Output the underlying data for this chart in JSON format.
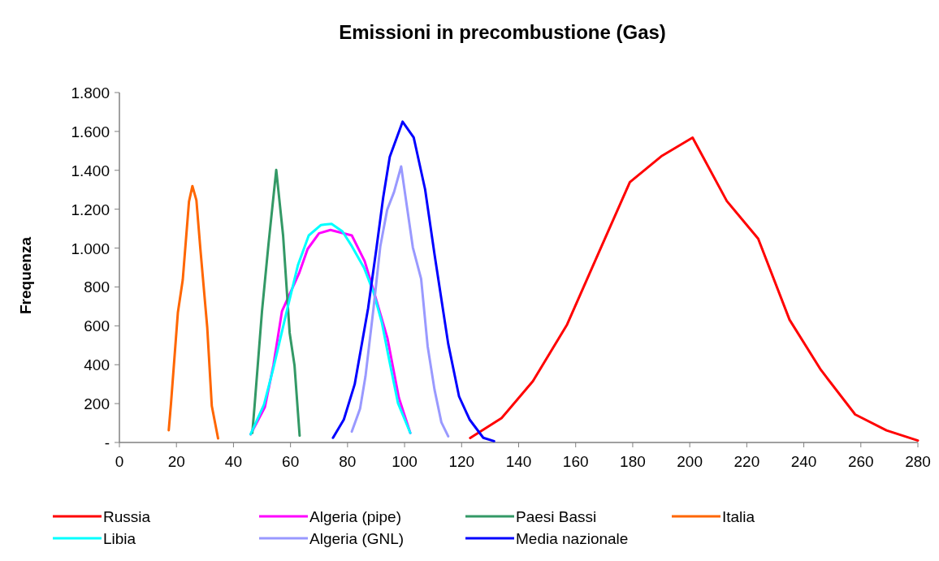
{
  "chart_data": {
    "type": "line",
    "title": "Emissioni in precombustione (Gas)",
    "ylabel": "Frequenza",
    "xlim": [
      0,
      280
    ],
    "xticks": [
      0,
      20,
      40,
      60,
      80,
      100,
      120,
      140,
      160,
      180,
      200,
      220,
      240,
      260,
      280
    ],
    "ylim": [
      0,
      1800
    ],
    "yticks": [
      {
        "value": 0,
        "label": "-"
      },
      {
        "value": 200,
        "label": "200"
      },
      {
        "value": 400,
        "label": "400"
      },
      {
        "value": 600,
        "label": "600"
      },
      {
        "value": 800,
        "label": "800"
      },
      {
        "value": 1000,
        "label": "1.000"
      },
      {
        "value": 1200,
        "label": "1.200"
      },
      {
        "value": 1400,
        "label": "1.400"
      },
      {
        "value": 1600,
        "label": "1.600"
      },
      {
        "value": 1800,
        "label": "1.800"
      }
    ],
    "grid": false,
    "legend": "bottom",
    "marker": "none",
    "line_style": "solid",
    "series": [
      {
        "name": "Russia",
        "color": "#ff0000",
        "x": [
          123,
          134,
          145,
          157,
          168,
          179,
          190,
          201,
          213,
          224,
          235,
          246,
          258,
          269,
          280
        ],
        "values": [
          23,
          125,
          315,
          607,
          974,
          1339,
          1472,
          1568,
          1242,
          1048,
          631,
          373,
          144,
          62,
          10
        ]
      },
      {
        "name": "Algeria (pipe)",
        "color": "#ff00ff",
        "x": [
          46,
          51,
          54,
          57,
          63,
          66,
          70,
          74,
          81.5,
          86,
          89,
          94,
          98,
          102
        ],
        "values": [
          42,
          181,
          397,
          675,
          870,
          995,
          1076,
          1093,
          1065,
          933,
          787,
          536,
          230,
          49
        ]
      },
      {
        "name": "Paesi Bassi",
        "color": "#339966",
        "x": [
          46.6,
          47.4,
          50,
          52.3,
          55,
          57.4,
          59.7,
          61.4,
          63.2
        ],
        "values": [
          49,
          188,
          675,
          1023,
          1402,
          1065,
          564,
          397,
          35
        ]
      },
      {
        "name": "Italia",
        "color": "#ff6600",
        "x": [
          17.3,
          18.1,
          20.5,
          22.2,
          24.4,
          25.6,
          27,
          28.4,
          30.8,
          32.4,
          34.6
        ],
        "values": [
          63,
          202,
          668,
          835,
          1239,
          1319,
          1246,
          995,
          592,
          188,
          21
        ]
      },
      {
        "name": "Libia",
        "color": "#00ffff",
        "x": [
          46,
          50.7,
          54,
          58.8,
          62.6,
          66.4,
          70.6,
          72.1,
          74.4,
          78.2,
          81.5,
          85.8,
          89.1,
          92,
          94.8,
          97.7,
          102
        ],
        "values": [
          42,
          195,
          383,
          682,
          912,
          1065,
          1118,
          1121,
          1124,
          1086,
          1010,
          898,
          773,
          619,
          411,
          202,
          49
        ]
      },
      {
        "name": "Algeria (GNL)",
        "color": "#9999ff",
        "x": [
          81.5,
          84.4,
          86.3,
          89.1,
          91.5,
          93.9,
          96.3,
          98.8,
          102.9,
          105.8,
          108.1,
          110.5,
          112.9,
          115.3
        ],
        "values": [
          56,
          174,
          341,
          689,
          1010,
          1197,
          1288,
          1420,
          1003,
          842,
          494,
          272,
          104,
          32
        ]
      },
      {
        "name": "Media nazionale",
        "color": "#0000ff",
        "x": [
          74.9,
          78.7,
          82.5,
          87.2,
          90.1,
          92.5,
          94.8,
          99.3,
          103.2,
          107.2,
          110.5,
          115.3,
          119.1,
          122.8,
          127.6,
          131.4
        ],
        "values": [
          24,
          118,
          299,
          689,
          995,
          1260,
          1469,
          1650,
          1569,
          1302,
          968,
          508,
          237,
          118,
          24,
          7
        ]
      }
    ]
  }
}
